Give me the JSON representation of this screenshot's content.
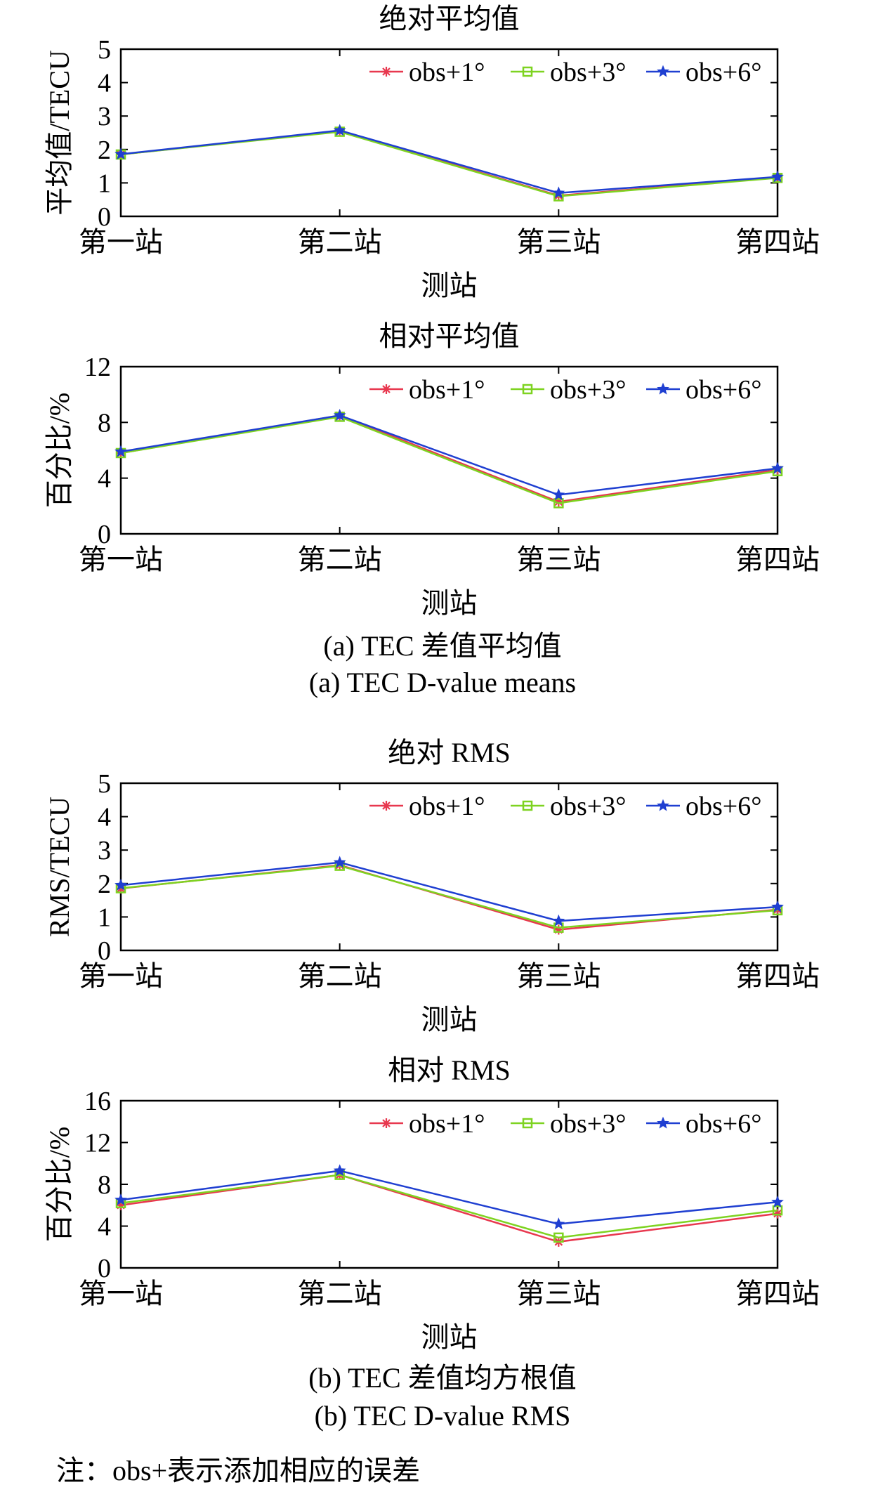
{
  "series_styles": [
    {
      "name": "obs+1°",
      "color": "#e8384f",
      "marker": "asterisk"
    },
    {
      "name": "obs+3°",
      "color": "#7ed321",
      "marker": "square"
    },
    {
      "name": "obs+6°",
      "color": "#1f3fd1",
      "marker": "star"
    }
  ],
  "chart_data": [
    {
      "type": "line",
      "title": "绝对平均值",
      "xlabel": "测站",
      "ylabel": "平均值/TECU",
      "categories": [
        "第一站",
        "第二站",
        "第三站",
        "第四站"
      ],
      "ylim": [
        0,
        5
      ],
      "yticks": [
        0,
        1,
        2,
        3,
        4,
        5
      ],
      "legend": "top-right",
      "series": [
        {
          "name": "obs+1°",
          "values": [
            1.85,
            2.55,
            0.62,
            1.17
          ]
        },
        {
          "name": "obs+3°",
          "values": [
            1.85,
            2.53,
            0.6,
            1.15
          ]
        },
        {
          "name": "obs+6°",
          "values": [
            1.86,
            2.57,
            0.7,
            1.18
          ]
        }
      ]
    },
    {
      "type": "line",
      "title": "相对平均值",
      "xlabel": "测站",
      "ylabel": "百分比/%",
      "categories": [
        "第一站",
        "第二站",
        "第三站",
        "第四站"
      ],
      "ylim": [
        0,
        12
      ],
      "yticks": [
        0,
        4,
        8,
        12
      ],
      "legend": "top-right",
      "series": [
        {
          "name": "obs+1°",
          "values": [
            5.8,
            8.5,
            2.3,
            4.6
          ]
        },
        {
          "name": "obs+3°",
          "values": [
            5.8,
            8.4,
            2.2,
            4.5
          ]
        },
        {
          "name": "obs+6°",
          "values": [
            5.9,
            8.5,
            2.8,
            4.7
          ]
        }
      ]
    },
    {
      "type": "line",
      "title": "绝对 RMS",
      "xlabel": "测站",
      "ylabel": "RMS/TECU",
      "categories": [
        "第一站",
        "第二站",
        "第三站",
        "第四站"
      ],
      "ylim": [
        0,
        5
      ],
      "yticks": [
        0,
        1,
        2,
        3,
        4,
        5
      ],
      "legend": "top-right",
      "series": [
        {
          "name": "obs+1°",
          "values": [
            1.85,
            2.55,
            0.62,
            1.22
          ]
        },
        {
          "name": "obs+3°",
          "values": [
            1.86,
            2.53,
            0.68,
            1.2
          ]
        },
        {
          "name": "obs+6°",
          "values": [
            1.95,
            2.63,
            0.88,
            1.3
          ]
        }
      ]
    },
    {
      "type": "line",
      "title": "相对 RMS",
      "xlabel": "测站",
      "ylabel": "百分比/%",
      "categories": [
        "第一站",
        "第二站",
        "第三站",
        "第四站"
      ],
      "ylim": [
        0,
        16
      ],
      "yticks": [
        0,
        4,
        8,
        12,
        16
      ],
      "legend": "top-right",
      "series": [
        {
          "name": "obs+1°",
          "values": [
            6.0,
            8.9,
            2.5,
            5.2
          ]
        },
        {
          "name": "obs+3°",
          "values": [
            6.2,
            8.9,
            2.9,
            5.5
          ]
        },
        {
          "name": "obs+6°",
          "values": [
            6.5,
            9.3,
            4.2,
            6.3
          ]
        }
      ]
    }
  ],
  "captions": {
    "a_cn": "(a) TEC 差值平均值",
    "a_en": "(a) TEC D-value means",
    "b_cn": "(b) TEC 差值均方根值",
    "b_en": "(b) TEC D-value RMS",
    "note": "注：obs+表示添加相应的误差"
  }
}
